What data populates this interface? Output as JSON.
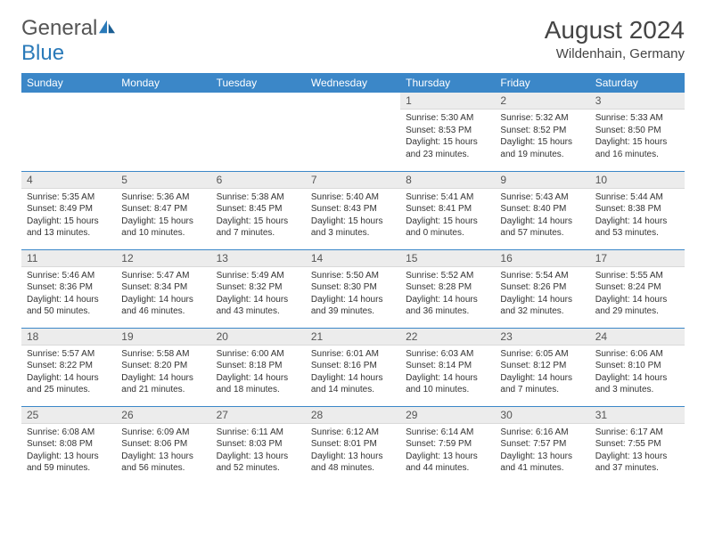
{
  "brand": {
    "name1": "General",
    "name2": "Blue"
  },
  "header": {
    "title": "August 2024",
    "location": "Wildenhain, Germany"
  },
  "colors": {
    "accent": "#3b87c8",
    "daynum_bg": "#ececec",
    "text": "#333333"
  },
  "weekdays": [
    "Sunday",
    "Monday",
    "Tuesday",
    "Wednesday",
    "Thursday",
    "Friday",
    "Saturday"
  ],
  "weeks": [
    [
      null,
      null,
      null,
      null,
      {
        "n": "1",
        "sr": "5:30 AM",
        "ss": "8:53 PM",
        "dl": "15 hours and 23 minutes."
      },
      {
        "n": "2",
        "sr": "5:32 AM",
        "ss": "8:52 PM",
        "dl": "15 hours and 19 minutes."
      },
      {
        "n": "3",
        "sr": "5:33 AM",
        "ss": "8:50 PM",
        "dl": "15 hours and 16 minutes."
      }
    ],
    [
      {
        "n": "4",
        "sr": "5:35 AM",
        "ss": "8:49 PM",
        "dl": "15 hours and 13 minutes."
      },
      {
        "n": "5",
        "sr": "5:36 AM",
        "ss": "8:47 PM",
        "dl": "15 hours and 10 minutes."
      },
      {
        "n": "6",
        "sr": "5:38 AM",
        "ss": "8:45 PM",
        "dl": "15 hours and 7 minutes."
      },
      {
        "n": "7",
        "sr": "5:40 AM",
        "ss": "8:43 PM",
        "dl": "15 hours and 3 minutes."
      },
      {
        "n": "8",
        "sr": "5:41 AM",
        "ss": "8:41 PM",
        "dl": "15 hours and 0 minutes."
      },
      {
        "n": "9",
        "sr": "5:43 AM",
        "ss": "8:40 PM",
        "dl": "14 hours and 57 minutes."
      },
      {
        "n": "10",
        "sr": "5:44 AM",
        "ss": "8:38 PM",
        "dl": "14 hours and 53 minutes."
      }
    ],
    [
      {
        "n": "11",
        "sr": "5:46 AM",
        "ss": "8:36 PM",
        "dl": "14 hours and 50 minutes."
      },
      {
        "n": "12",
        "sr": "5:47 AM",
        "ss": "8:34 PM",
        "dl": "14 hours and 46 minutes."
      },
      {
        "n": "13",
        "sr": "5:49 AM",
        "ss": "8:32 PM",
        "dl": "14 hours and 43 minutes."
      },
      {
        "n": "14",
        "sr": "5:50 AM",
        "ss": "8:30 PM",
        "dl": "14 hours and 39 minutes."
      },
      {
        "n": "15",
        "sr": "5:52 AM",
        "ss": "8:28 PM",
        "dl": "14 hours and 36 minutes."
      },
      {
        "n": "16",
        "sr": "5:54 AM",
        "ss": "8:26 PM",
        "dl": "14 hours and 32 minutes."
      },
      {
        "n": "17",
        "sr": "5:55 AM",
        "ss": "8:24 PM",
        "dl": "14 hours and 29 minutes."
      }
    ],
    [
      {
        "n": "18",
        "sr": "5:57 AM",
        "ss": "8:22 PM",
        "dl": "14 hours and 25 minutes."
      },
      {
        "n": "19",
        "sr": "5:58 AM",
        "ss": "8:20 PM",
        "dl": "14 hours and 21 minutes."
      },
      {
        "n": "20",
        "sr": "6:00 AM",
        "ss": "8:18 PM",
        "dl": "14 hours and 18 minutes."
      },
      {
        "n": "21",
        "sr": "6:01 AM",
        "ss": "8:16 PM",
        "dl": "14 hours and 14 minutes."
      },
      {
        "n": "22",
        "sr": "6:03 AM",
        "ss": "8:14 PM",
        "dl": "14 hours and 10 minutes."
      },
      {
        "n": "23",
        "sr": "6:05 AM",
        "ss": "8:12 PM",
        "dl": "14 hours and 7 minutes."
      },
      {
        "n": "24",
        "sr": "6:06 AM",
        "ss": "8:10 PM",
        "dl": "14 hours and 3 minutes."
      }
    ],
    [
      {
        "n": "25",
        "sr": "6:08 AM",
        "ss": "8:08 PM",
        "dl": "13 hours and 59 minutes."
      },
      {
        "n": "26",
        "sr": "6:09 AM",
        "ss": "8:06 PM",
        "dl": "13 hours and 56 minutes."
      },
      {
        "n": "27",
        "sr": "6:11 AM",
        "ss": "8:03 PM",
        "dl": "13 hours and 52 minutes."
      },
      {
        "n": "28",
        "sr": "6:12 AM",
        "ss": "8:01 PM",
        "dl": "13 hours and 48 minutes."
      },
      {
        "n": "29",
        "sr": "6:14 AM",
        "ss": "7:59 PM",
        "dl": "13 hours and 44 minutes."
      },
      {
        "n": "30",
        "sr": "6:16 AM",
        "ss": "7:57 PM",
        "dl": "13 hours and 41 minutes."
      },
      {
        "n": "31",
        "sr": "6:17 AM",
        "ss": "7:55 PM",
        "dl": "13 hours and 37 minutes."
      }
    ]
  ],
  "labels": {
    "sunrise": "Sunrise:",
    "sunset": "Sunset:",
    "daylight": "Daylight:"
  }
}
